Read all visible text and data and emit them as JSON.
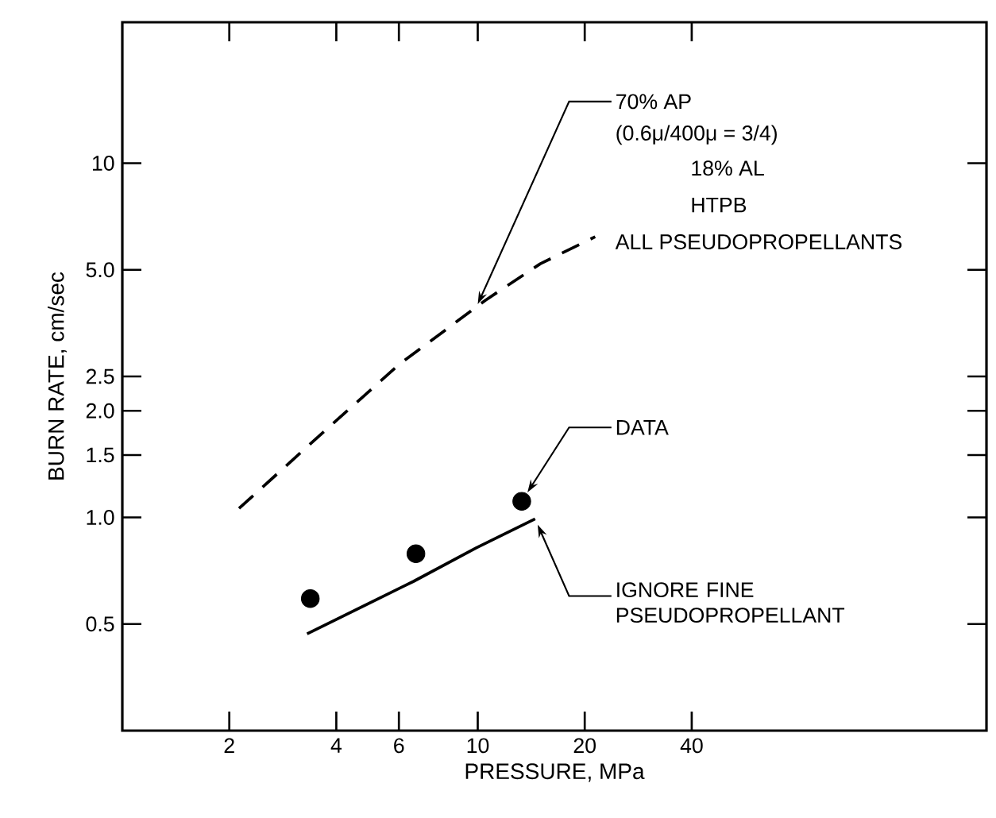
{
  "chart_data": {
    "type": "line",
    "xlabel": "PRESSURE, MPa",
    "ylabel": "BURN RATE, cm/sec",
    "log": "xy",
    "xlim": [
      1,
      270
    ],
    "ylim": [
      0.25,
      25
    ],
    "xticks": [
      2,
      4,
      6,
      10,
      20,
      40
    ],
    "yticks": [
      {
        "value": 0.5,
        "label": "0.5"
      },
      {
        "value": 1,
        "label": "1.0"
      },
      {
        "value": 1.5,
        "label": "1.5"
      },
      {
        "value": 2,
        "label": "2.0"
      },
      {
        "value": 2.5,
        "label": "2.5"
      },
      {
        "value": 5,
        "label": "5.0"
      },
      10
    ],
    "grid": false,
    "series": [
      {
        "name": "ALL PSEUDOPROPELLANTS",
        "line_style": "dashed",
        "color": "#000000",
        "x": [
          2.13,
          3.56,
          6.0,
          10.5,
          15.0,
          21.4
        ],
        "values": [
          1.06,
          1.69,
          2.7,
          4.1,
          5.2,
          6.2
        ]
      },
      {
        "name": "DATA",
        "type": "scatter",
        "marker": "circle",
        "color": "#000000",
        "x": [
          3.38,
          6.7,
          13.3
        ],
        "values": [
          0.59,
          0.79,
          1.11
        ]
      },
      {
        "name": "IGNORE FINE PSEUDOPROPELLANT",
        "line_style": "solid",
        "color": "#000000",
        "x": [
          3.31,
          6.6,
          9.9,
          14.5
        ],
        "values": [
          0.469,
          0.66,
          0.82,
          0.99
        ]
      }
    ],
    "annotations": [
      {
        "text": "70% AP",
        "x": 10,
        "y": 4.0
      },
      "(0.6μ/400μ = 3/4)",
      "18% AL",
      "HTPB"
    ]
  }
}
